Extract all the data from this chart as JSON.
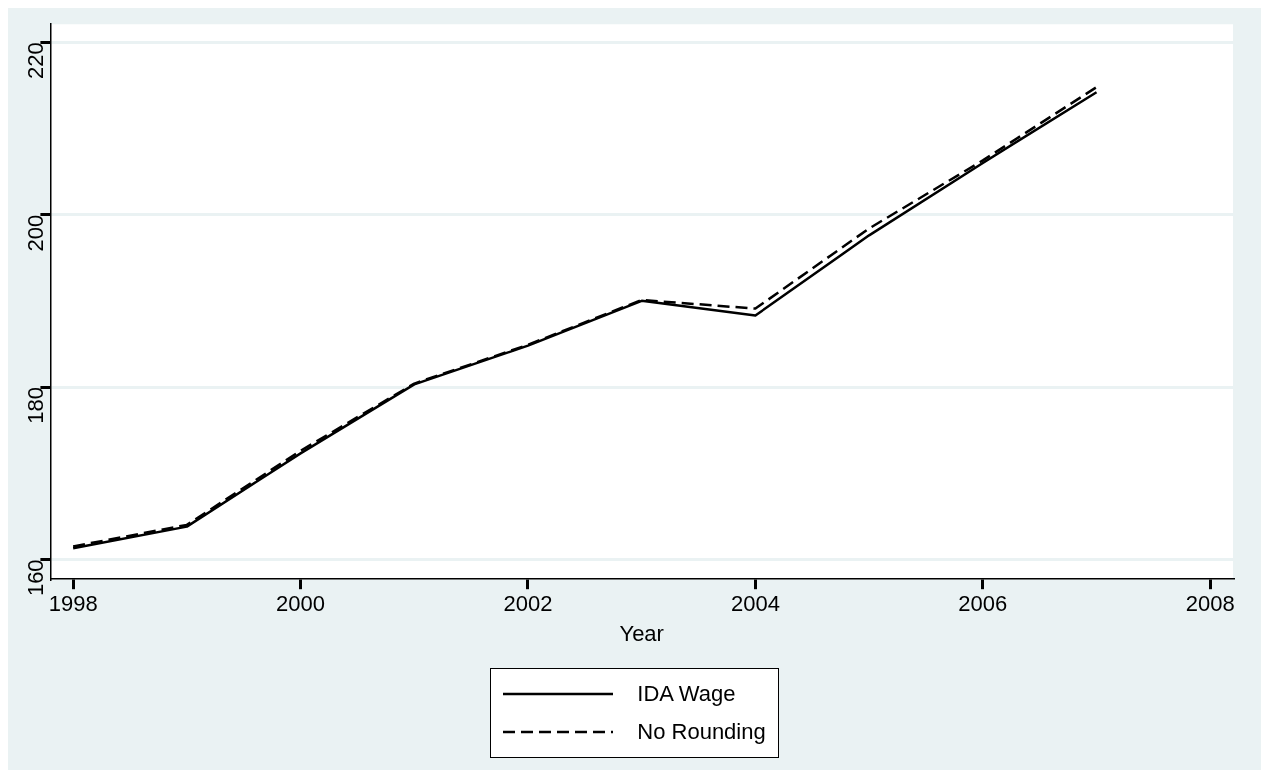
{
  "chart_data": {
    "type": "line",
    "xlabel": "Year",
    "x": [
      1998,
      1999,
      2000,
      2001,
      2002,
      2003,
      2004,
      2005,
      2006,
      2007
    ],
    "series": [
      {
        "name": "IDA Wage",
        "color": "#000000",
        "line_style": "solid",
        "values": [
          161.3,
          163.8,
          172.3,
          180.3,
          184.8,
          190.0,
          188.3,
          197.6,
          206.0,
          214.2
        ]
      },
      {
        "name": "No Rounding",
        "color": "#000000",
        "line_style": "dashed",
        "values": [
          161.5,
          164.0,
          172.6,
          180.4,
          184.9,
          190.1,
          189.1,
          198.4,
          206.3,
          214.8
        ]
      }
    ],
    "xlim": [
      1997.8,
      2008.2
    ],
    "xticks": [
      1998,
      2000,
      2002,
      2004,
      2006,
      2008
    ],
    "ylim": [
      157.7,
      222.1
    ],
    "yticks": [
      160,
      180,
      200,
      220
    ],
    "grid": "y",
    "legend": "bottom",
    "marker": "none"
  }
}
